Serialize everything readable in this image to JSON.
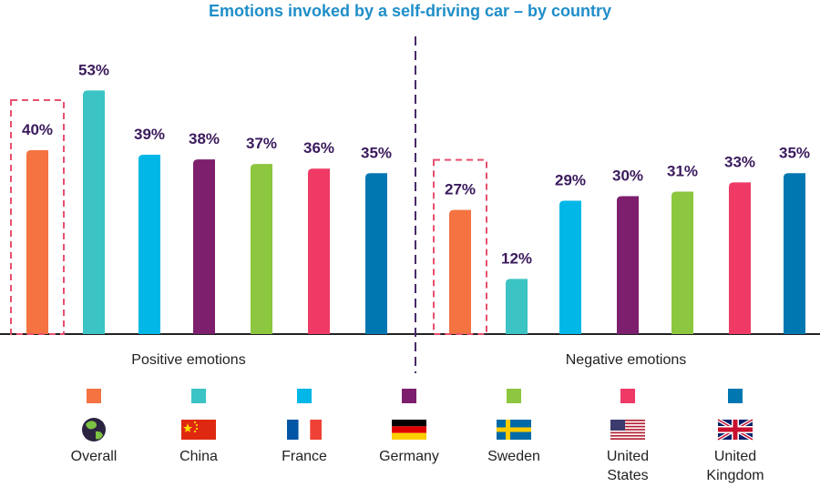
{
  "chart_data": {
    "type": "bar",
    "title": "Emotions invoked by a self-driving car – by country",
    "groups": [
      "Positive emotions",
      "Negative emotions"
    ],
    "highlighted": "Overall",
    "series": [
      {
        "name": "Overall",
        "color": "#f47340",
        "values": [
          40,
          27
        ],
        "flag_icon": "globe-icon"
      },
      {
        "name": "China",
        "color": "#3cc3c3",
        "values": [
          53,
          12
        ],
        "flag_icon": "china-flag-icon"
      },
      {
        "name": "France",
        "color": "#00b7e8",
        "values": [
          39,
          29
        ],
        "flag_icon": "france-flag-icon"
      },
      {
        "name": "Germany",
        "color": "#7d1f6d",
        "values": [
          38,
          30
        ],
        "flag_icon": "germany-flag-icon"
      },
      {
        "name": "Sweden",
        "color": "#8dc63f",
        "values": [
          37,
          31
        ],
        "flag_icon": "sweden-flag-icon"
      },
      {
        "name": "United States",
        "color": "#ee3a64",
        "values": [
          36,
          33
        ],
        "flag_icon": "usa-flag-icon"
      },
      {
        "name": "United Kingdom",
        "color": "#0077b0",
        "values": [
          35,
          35
        ],
        "flag_icon": "uk-flag-icon"
      }
    ],
    "value_suffix": "%"
  }
}
